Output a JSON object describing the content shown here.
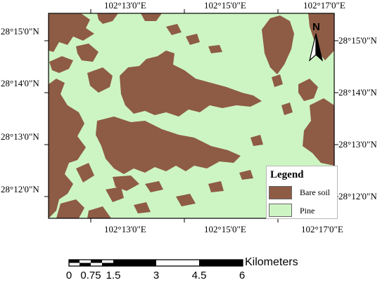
{
  "map": {
    "colors": {
      "bare_soil": "#8e5b45",
      "pine": "#cdf5c3"
    },
    "top_labels": [
      "102°13'0\"E",
      "102°15'0\"E",
      "102°17'0\"E"
    ],
    "bottom_labels": [
      "102°13'0\"E",
      "102°15'0\"E",
      "102°17'0\"E"
    ],
    "left_labels": [
      "28°15'0\"N",
      "28°14'0\"N",
      "28°13'0\"N",
      "28°12'0\"N"
    ],
    "right_labels": [
      "28°15'0\"N",
      "28°14'0\"N",
      "28°13'0\"N",
      "28°12'0\"N"
    ]
  },
  "legend": {
    "title": "Legend",
    "items": [
      {
        "label": "Bare soil",
        "color": "#8e5b45"
      },
      {
        "label": "Pine",
        "color": "#cdf5c3"
      }
    ]
  },
  "north_arrow": {
    "letter": "N",
    "icon": "north-arrow-icon"
  },
  "scale_bar": {
    "ticks": [
      "0",
      "0.75",
      "1.5",
      "3",
      "4.5",
      "6"
    ],
    "unit": "Kilometers"
  }
}
